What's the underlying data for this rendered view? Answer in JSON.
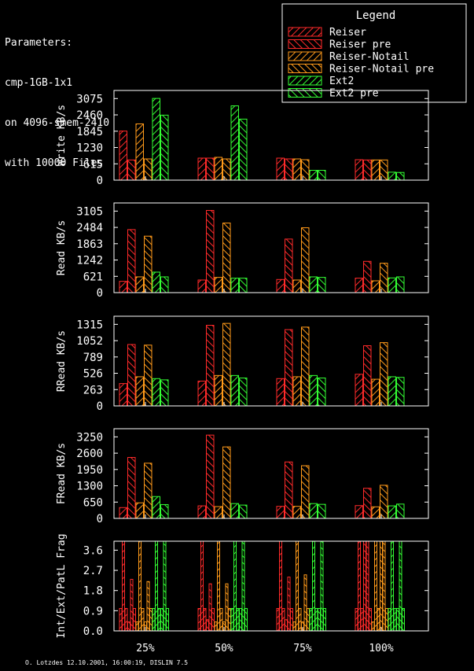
{
  "parameters": [
    "Parameters:",
    "cmp-1GB-1x1",
    "on 4096-smem-2410",
    "with 10000 Files"
  ],
  "credit": "O. Lotzdes 12.10.2001, 16:00:19, DISLIN 7.5",
  "legend": {
    "title": "Legend",
    "entries": [
      {
        "label": "Reiser",
        "color": "#ff2a2a"
      },
      {
        "label": "Reiser pre",
        "color": "#ff2a2a"
      },
      {
        "label": "Reiser-Notail",
        "color": "#ff9a1a"
      },
      {
        "label": "Reiser-Notail pre",
        "color": "#ff9a1a"
      },
      {
        "label": "Ext2",
        "color": "#33ff33"
      },
      {
        "label": "Ext2 pre",
        "color": "#33ff33"
      }
    ]
  },
  "chart_data": [
    {
      "type": "bar",
      "ylabel": "Write KB/s",
      "yticks": [
        "0",
        "615",
        "1230",
        "1845",
        "2460",
        "3075"
      ],
      "ylim": [
        0,
        3380
      ],
      "categories": [
        "25%",
        "50%",
        "75%",
        "100%"
      ],
      "series": [
        {
          "name": "Reiser",
          "values": [
            1850,
            830,
            830,
            770
          ]
        },
        {
          "name": "Reiser pre",
          "values": [
            760,
            830,
            800,
            760
          ]
        },
        {
          "name": "Reiser-Notail",
          "values": [
            2120,
            860,
            800,
            760
          ]
        },
        {
          "name": "Reiser-Notail pre",
          "values": [
            800,
            800,
            770,
            760
          ]
        },
        {
          "name": "Ext2",
          "values": [
            3080,
            2800,
            370,
            300
          ]
        },
        {
          "name": "Ext2 pre",
          "values": [
            2450,
            2300,
            370,
            290
          ]
        }
      ]
    },
    {
      "type": "bar",
      "ylabel": "Read KB/s",
      "yticks": [
        "0",
        "621",
        "1242",
        "1863",
        "2484",
        "3105"
      ],
      "ylim": [
        0,
        3415
      ],
      "categories": [
        "25%",
        "50%",
        "75%",
        "100%"
      ],
      "series": [
        {
          "name": "Reiser",
          "values": [
            430,
            480,
            500,
            550
          ]
        },
        {
          "name": "Reiser pre",
          "values": [
            2400,
            3130,
            2040,
            1190
          ]
        },
        {
          "name": "Reiser-Notail",
          "values": [
            600,
            580,
            480,
            450
          ]
        },
        {
          "name": "Reiser-Notail pre",
          "values": [
            2150,
            2650,
            2470,
            1120
          ]
        },
        {
          "name": "Ext2",
          "values": [
            780,
            550,
            600,
            560
          ]
        },
        {
          "name": "Ext2 pre",
          "values": [
            600,
            550,
            580,
            600
          ]
        }
      ]
    },
    {
      "type": "bar",
      "ylabel": "RRead KB/s",
      "yticks": [
        "0",
        "263",
        "526",
        "789",
        "1052",
        "1315"
      ],
      "ylim": [
        0,
        1446
      ],
      "categories": [
        "25%",
        "50%",
        "75%",
        "100%"
      ],
      "series": [
        {
          "name": "Reiser",
          "values": [
            360,
            400,
            440,
            510
          ]
        },
        {
          "name": "Reiser pre",
          "values": [
            990,
            1300,
            1230,
            970
          ]
        },
        {
          "name": "Reiser-Notail",
          "values": [
            470,
            490,
            470,
            430
          ]
        },
        {
          "name": "Reiser-Notail pre",
          "values": [
            980,
            1330,
            1270,
            1020
          ]
        },
        {
          "name": "Ext2",
          "values": [
            440,
            490,
            490,
            470
          ]
        },
        {
          "name": "Ext2 pre",
          "values": [
            420,
            450,
            450,
            460
          ]
        }
      ]
    },
    {
      "type": "bar",
      "ylabel": "FRead KB/s",
      "yticks": [
        "0",
        "650",
        "1300",
        "1950",
        "2600",
        "3250"
      ],
      "ylim": [
        0,
        3575
      ],
      "categories": [
        "25%",
        "50%",
        "75%",
        "100%"
      ],
      "series": [
        {
          "name": "Reiser",
          "values": [
            430,
            500,
            480,
            510
          ]
        },
        {
          "name": "Reiser pre",
          "values": [
            2430,
            3320,
            2250,
            1200
          ]
        },
        {
          "name": "Reiser-Notail",
          "values": [
            620,
            470,
            480,
            460
          ]
        },
        {
          "name": "Reiser-Notail pre",
          "values": [
            2200,
            2850,
            2100,
            1320
          ]
        },
        {
          "name": "Ext2",
          "values": [
            870,
            590,
            590,
            500
          ]
        },
        {
          "name": "Ext2 pre",
          "values": [
            550,
            530,
            560,
            570
          ]
        }
      ]
    },
    {
      "type": "bar",
      "ylabel": "Int/Ext/PatL Frag",
      "yticks": [
        "0.0",
        "0.9",
        "1.8",
        "2.7",
        "3.6"
      ],
      "ylim": [
        0,
        4.0
      ],
      "categories": [
        "25%",
        "50%",
        "75%",
        "100%"
      ],
      "note": "three sub-bars per series: internal, external, path-length fragmentation",
      "series": [
        {
          "name": "Reiser",
          "values": [
            [
              1.0,
              4.0,
              1.0
            ],
            [
              1.0,
              4.0,
              1.0
            ],
            [
              1.0,
              4.0,
              1.0
            ],
            [
              1.0,
              4.0,
              1.0
            ]
          ]
        },
        {
          "name": "Reiser pre",
          "values": [
            [
              0.4,
              2.3,
              1.0
            ],
            [
              0.5,
              2.1,
              1.0
            ],
            [
              0.5,
              2.4,
              1.0
            ],
            [
              4.0,
              4.0,
              1.0
            ]
          ]
        },
        {
          "name": "Reiser-Notail",
          "values": [
            [
              0.4,
              4.0,
              1.0
            ],
            [
              0.4,
              4.0,
              1.0
            ],
            [
              0.4,
              4.0,
              1.0
            ],
            [
              0.4,
              4.0,
              1.0
            ]
          ]
        },
        {
          "name": "Reiser-Notail pre",
          "values": [
            [
              0.4,
              2.2,
              1.0
            ],
            [
              0.4,
              2.1,
              1.0
            ],
            [
              0.4,
              2.5,
              1.0
            ],
            [
              4.0,
              4.0,
              1.0
            ]
          ]
        },
        {
          "name": "Ext2",
          "values": [
            [
              1.0,
              4.0,
              1.0
            ],
            [
              1.0,
              4.0,
              1.0
            ],
            [
              1.0,
              4.0,
              1.0
            ],
            [
              1.0,
              4.0,
              1.0
            ]
          ]
        },
        {
          "name": "Ext2 pre",
          "values": [
            [
              1.0,
              4.0,
              1.0
            ],
            [
              1.0,
              4.0,
              1.0
            ],
            [
              1.0,
              4.0,
              1.0
            ],
            [
              1.0,
              4.0,
              1.0
            ]
          ]
        }
      ]
    }
  ]
}
